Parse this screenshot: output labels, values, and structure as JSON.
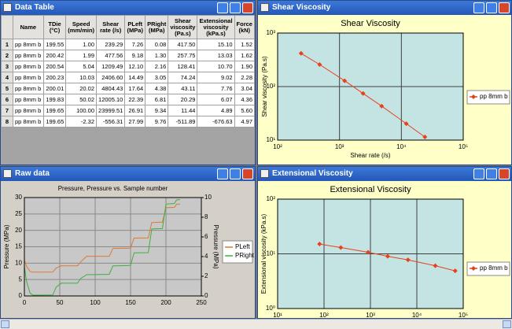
{
  "data_table": {
    "title": "Data Table",
    "columns": [
      "Name",
      "TDie (°C)",
      "Speed (mm/min)",
      "Shear rate (/s)",
      "PLeft (MPa)",
      "PRight (MPa)",
      "Shear viscosity (Pa.s)",
      "Extensional viscosity (kPa.s)",
      "Force (kN)"
    ],
    "rows": [
      [
        "1",
        "pp 8mm b",
        "199.55",
        "1.00",
        "239.29",
        "7.26",
        "0.08",
        "417.50",
        "15.10",
        "1.52"
      ],
      [
        "2",
        "pp 8mm b",
        "200.42",
        "1.99",
        "477.56",
        "9.18",
        "1.30",
        "257.75",
        "13.03",
        "1.62"
      ],
      [
        "3",
        "pp 8mm b",
        "200.54",
        "5.04",
        "1209.49",
        "12.10",
        "2.16",
        "128.41",
        "10.70",
        "1.90"
      ],
      [
        "4",
        "pp 8mm b",
        "200.23",
        "10.03",
        "2406.60",
        "14.49",
        "3.05",
        "74.24",
        "9.02",
        "2.28"
      ],
      [
        "5",
        "pp 8mm b",
        "200.01",
        "20.02",
        "4804.43",
        "17.64",
        "4.38",
        "43.11",
        "7.76",
        "3.04"
      ],
      [
        "6",
        "pp 8mm b",
        "199.83",
        "50.02",
        "12005.10",
        "22.39",
        "6.81",
        "20.29",
        "6.07",
        "4.36"
      ],
      [
        "7",
        "pp 8mm b",
        "199.65",
        "100.00",
        "23999.51",
        "26.91",
        "9.34",
        "11.44",
        "4.89",
        "5.60"
      ],
      [
        "8",
        "pp 8mm b",
        "199.65",
        "-2.32",
        "-556.31",
        "27.99",
        "9.76",
        "-511.89",
        "-676.63",
        "4.97"
      ]
    ]
  },
  "shear_viscosity": {
    "title": "Shear Viscosity",
    "chart": {
      "type": "line",
      "title": "Shear Viscosity",
      "x_label": "Shear rate (/s)",
      "y_label": "Shear viscosity (Pa.s)",
      "x": [
        239.29,
        477.56,
        1209.49,
        2406.6,
        4804.43,
        12005.1,
        23999.51
      ],
      "series": [
        {
          "name": "pp 8mm b",
          "color": "#e8401c",
          "values": [
            417.5,
            257.75,
            128.41,
            74.24,
            43.11,
            20.29,
            11.44
          ]
        }
      ],
      "log_x": true,
      "log_y": true,
      "markers": true,
      "grid": true,
      "xlim": [
        100,
        100000
      ],
      "ylim": [
        10,
        1000
      ],
      "xticks": [
        {
          "value": 100,
          "label": "10²"
        },
        {
          "value": 1000,
          "label": "10³"
        },
        {
          "value": 10000,
          "label": "10⁴"
        },
        {
          "value": 100000,
          "label": "10⁵"
        }
      ],
      "yticks": [
        {
          "value": 10,
          "label": "10¹"
        },
        {
          "value": 100,
          "label": "10²"
        },
        {
          "value": 1000,
          "label": "10³"
        }
      ]
    }
  },
  "raw_data": {
    "title": "Raw data",
    "chart": {
      "type": "line",
      "title": "Pressure, Pressure vs. Sample number",
      "y_label": "Pressure (MPa)",
      "y2_label": "Pressure (MPa)",
      "x": [
        0,
        3,
        8,
        12,
        40,
        45,
        52,
        75,
        80,
        88,
        120,
        125,
        150,
        155,
        175,
        180,
        195,
        200,
        212,
        215,
        220
      ],
      "series": [
        {
          "name": "PLeft",
          "color": "#e07830",
          "values": [
            11,
            9,
            7.5,
            7.26,
            7.3,
            8.5,
            9.18,
            9.2,
            10.5,
            12.1,
            12.1,
            14.49,
            14.6,
            17.64,
            17.7,
            22.39,
            22.5,
            26.91,
            27,
            27.99,
            28
          ]
        },
        {
          "name": "PRight",
          "color": "#40b040",
          "axis": "y2",
          "values": [
            3,
            1.5,
            0.3,
            0.08,
            0.1,
            0.9,
            1.3,
            1.3,
            1.8,
            2.16,
            2.2,
            3.05,
            3.1,
            4.38,
            4.4,
            6.81,
            6.85,
            9.34,
            9.4,
            9.76,
            9.8
          ]
        }
      ],
      "log_x": false,
      "log_y": false,
      "markers": false,
      "grid": true,
      "xlim": [
        0,
        250
      ],
      "ylim": [
        0,
        30
      ],
      "y2lim": [
        0,
        10
      ],
      "xticks": [
        0,
        50,
        100,
        150,
        200,
        250
      ],
      "yticks": [
        0,
        5,
        10,
        15,
        20,
        25,
        30
      ],
      "y2ticks": [
        0,
        2,
        4,
        6,
        8,
        10
      ]
    }
  },
  "extensional_viscosity": {
    "title": "Extensional Viscosity",
    "chart": {
      "type": "line",
      "title": "Extensional Viscosity",
      "y_label": "Extensional viscosity (kPa.s)",
      "x": [
        80,
        230,
        890,
        2350,
        6450,
        25000,
        67000
      ],
      "series": [
        {
          "name": "pp 8mm b",
          "color": "#e8401c",
          "values": [
            15.1,
            13.03,
            10.7,
            9.02,
            7.76,
            6.07,
            4.89
          ]
        }
      ],
      "log_x": true,
      "log_y": true,
      "markers": true,
      "grid": true,
      "xlim": [
        10,
        100000
      ],
      "ylim": [
        1,
        100
      ],
      "xticks": [
        {
          "value": 10,
          "label": "10¹"
        },
        {
          "value": 100,
          "label": "10²"
        },
        {
          "value": 1000,
          "label": "10³"
        },
        {
          "value": 10000,
          "label": "10⁴"
        },
        {
          "value": 100000,
          "label": "10⁵"
        }
      ],
      "yticks": [
        {
          "value": 1,
          "label": "10⁰"
        },
        {
          "value": 10,
          "label": "10¹"
        },
        {
          "value": 100,
          "label": "10²"
        }
      ]
    }
  }
}
